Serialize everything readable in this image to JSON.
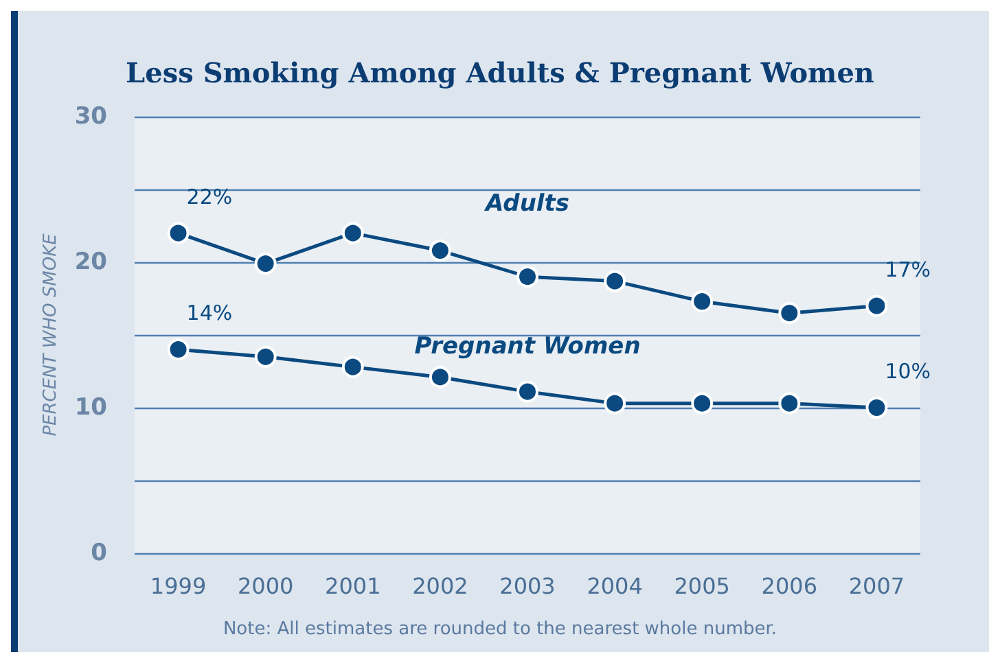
{
  "chart_data": {
    "type": "line",
    "title": "Less Smoking Among Adults & Pregnant Women",
    "ylabel": "PERCENT WHO SMOKE",
    "categories": [
      "1999",
      "2000",
      "2001",
      "2002",
      "2003",
      "2004",
      "2005",
      "2006",
      "2007"
    ],
    "series": [
      {
        "name": "Adults",
        "color": "#0b4a80",
        "values": [
          22,
          19.9,
          22,
          20.8,
          19,
          18.7,
          17.3,
          16.5,
          17
        ],
        "value_labels": [
          "22%",
          null,
          null,
          null,
          null,
          null,
          null,
          null,
          "17%"
        ]
      },
      {
        "name": "Pregnant Women",
        "color": "#0b4a80",
        "values": [
          14,
          13.5,
          12.8,
          12.1,
          11.1,
          10.3,
          10.3,
          10.3,
          10
        ],
        "value_labels": [
          "14%",
          null,
          null,
          null,
          null,
          null,
          null,
          null,
          "10%"
        ]
      }
    ],
    "ylim": [
      0,
      30
    ],
    "yticks": [
      0,
      {
        "value": 5,
        "label": null
      },
      10,
      {
        "value": 15,
        "label": null
      },
      20,
      {
        "value": 25,
        "label": null
      },
      30
    ],
    "grid": "y",
    "legend": false,
    "marker": "circle",
    "line_style": "solid",
    "annotations": [
      "Note: All estimates are rounded to the nearest whole number."
    ]
  }
}
